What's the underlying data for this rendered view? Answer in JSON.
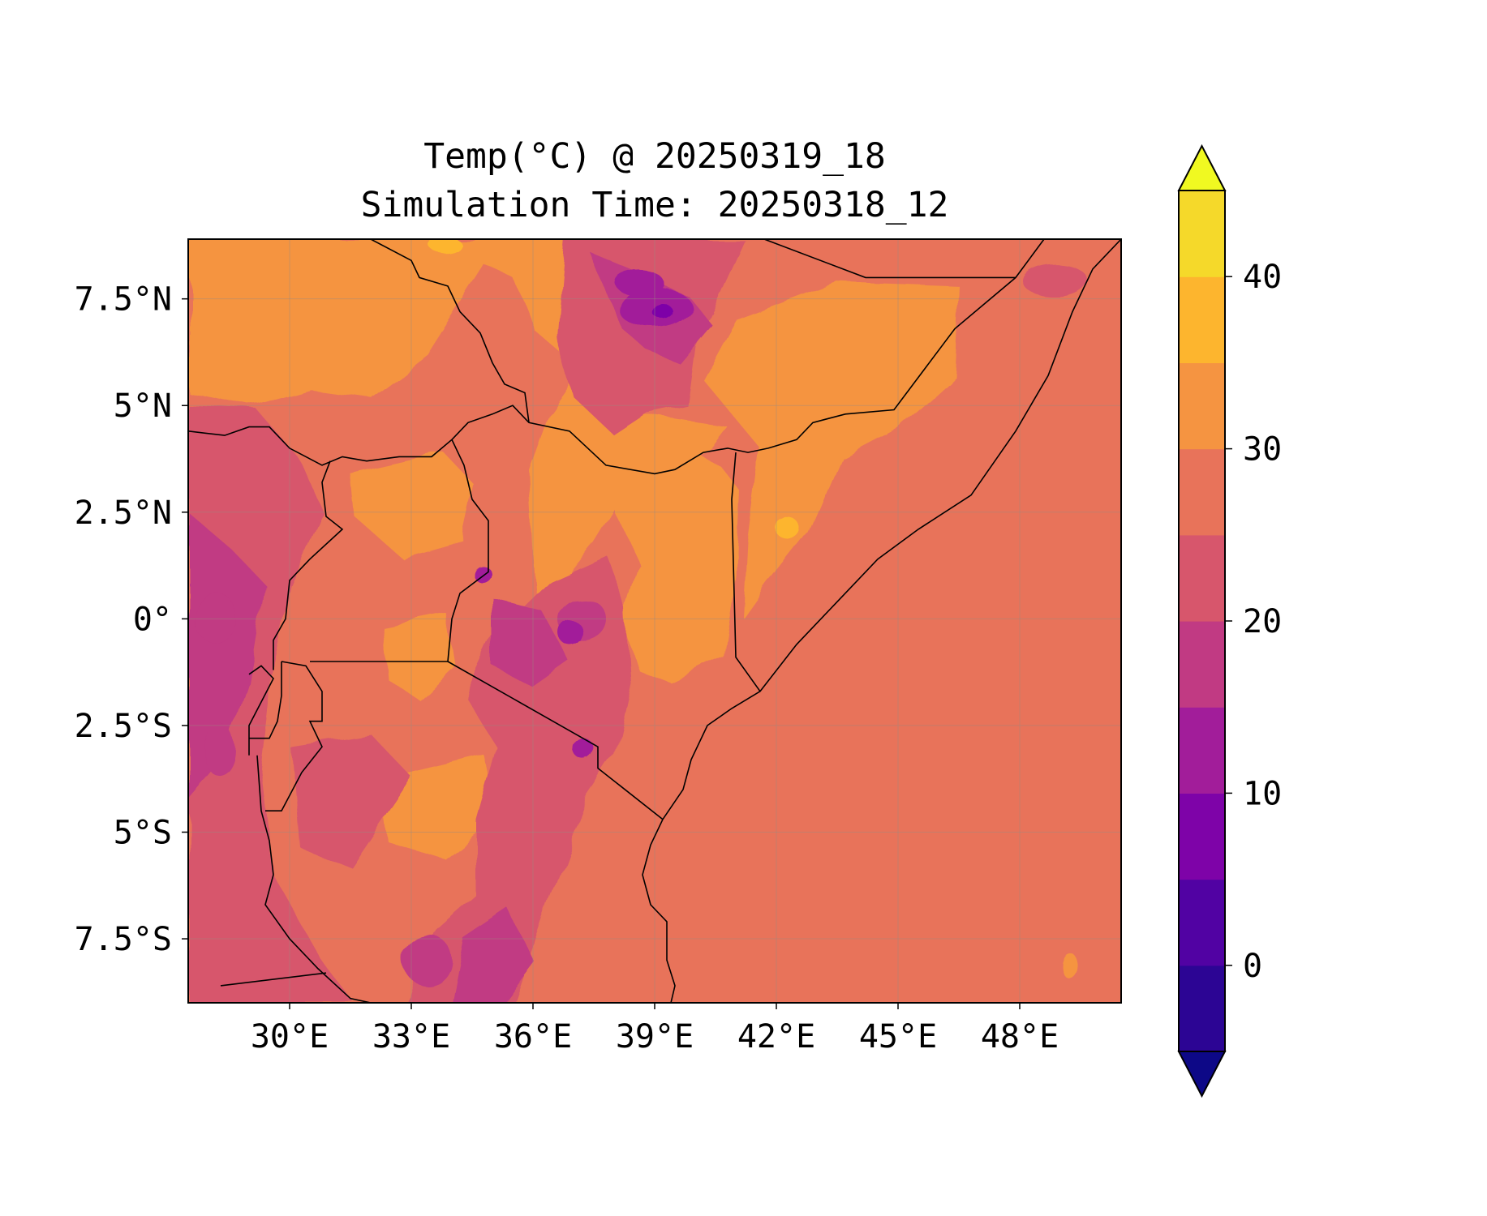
{
  "title_line1": "Temp(°C) @ 20250319_18",
  "title_line2": "Simulation Time: 20250318_12",
  "map": {
    "lon_range": [
      27.5,
      50.5
    ],
    "lat_range": [
      -9.0,
      8.9
    ],
    "lon_ticks": [
      {
        "value": 30,
        "label": "30°E"
      },
      {
        "value": 33,
        "label": "33°E"
      },
      {
        "value": 36,
        "label": "36°E"
      },
      {
        "value": 39,
        "label": "39°E"
      },
      {
        "value": 42,
        "label": "42°E"
      },
      {
        "value": 45,
        "label": "45°E"
      },
      {
        "value": 48,
        "label": "48°E"
      }
    ],
    "lat_ticks": [
      {
        "value": 7.5,
        "label": "7.5°N"
      },
      {
        "value": 5,
        "label": "5°N"
      },
      {
        "value": 2.5,
        "label": "2.5°N"
      },
      {
        "value": 0,
        "label": "0°"
      },
      {
        "value": -2.5,
        "label": "2.5°S"
      },
      {
        "value": -5,
        "label": "5°S"
      },
      {
        "value": -7.5,
        "label": "7.5°S"
      }
    ],
    "gridlines": true,
    "background_level_color": "#e8735a"
  },
  "colorbar": {
    "levels": [
      -5,
      0,
      5,
      10,
      15,
      20,
      25,
      30,
      35,
      40,
      45
    ],
    "colors": [
      "#2c0594",
      "#5102a3",
      "#7e03a8",
      "#a21d9a",
      "#c13a83",
      "#d7566c",
      "#e8735a",
      "#f59441",
      "#fdb52e",
      "#f5d92a"
    ],
    "under_color": "#0d0887",
    "over_color": "#f0f921",
    "ticks": [
      {
        "value": 0,
        "label": "0"
      },
      {
        "value": 10,
        "label": "10"
      },
      {
        "value": 20,
        "label": "20"
      },
      {
        "value": 30,
        "label": "30"
      },
      {
        "value": 40,
        "label": "40"
      }
    ],
    "extend": "both"
  }
}
